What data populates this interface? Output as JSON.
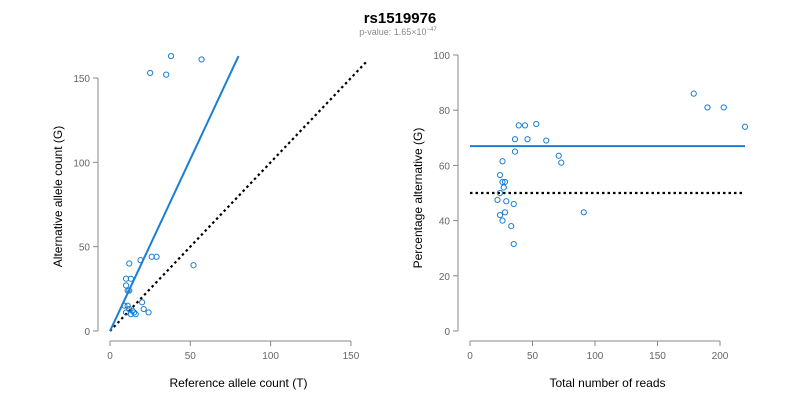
{
  "chart_data": {
    "title": "rs1519976",
    "subtitle": {
      "prefix": "p-value: 1.65×10",
      "exponent": "−47"
    },
    "colors": {
      "point": "#1a7fd4",
      "fit_line": "#1a7fd4",
      "reference_line": "#000000",
      "axis": "#888888",
      "tick_text": "#666666"
    },
    "panels": [
      {
        "type": "scatter",
        "xlabel": "Reference allele count (T)",
        "ylabel": "Alternative allele count (G)",
        "xlim": [
          0,
          160
        ],
        "ylim": [
          0,
          160
        ],
        "xticks": [
          0,
          50,
          100,
          150
        ],
        "yticks": [
          0,
          50,
          100,
          150
        ],
        "grid": false,
        "points": [
          {
            "x": 25,
            "y": 153
          },
          {
            "x": 35,
            "y": 152
          },
          {
            "x": 38,
            "y": 163
          },
          {
            "x": 57,
            "y": 161
          },
          {
            "x": 12,
            "y": 40
          },
          {
            "x": 19,
            "y": 42
          },
          {
            "x": 26,
            "y": 44
          },
          {
            "x": 29,
            "y": 44
          },
          {
            "x": 52,
            "y": 39
          },
          {
            "x": 10,
            "y": 31
          },
          {
            "x": 13,
            "y": 31
          },
          {
            "x": 10,
            "y": 27
          },
          {
            "x": 11,
            "y": 24
          },
          {
            "x": 12,
            "y": 24
          },
          {
            "x": 9,
            "y": 15
          },
          {
            "x": 11,
            "y": 15
          },
          {
            "x": 12,
            "y": 13
          },
          {
            "x": 10,
            "y": 11
          },
          {
            "x": 13,
            "y": 10
          },
          {
            "x": 14,
            "y": 12
          },
          {
            "x": 15,
            "y": 11
          },
          {
            "x": 16,
            "y": 10
          },
          {
            "x": 20,
            "y": 17
          },
          {
            "x": 21,
            "y": 13
          },
          {
            "x": 24,
            "y": 11
          }
        ],
        "fit_line": {
          "x": [
            0,
            80
          ],
          "y": [
            0,
            163
          ]
        },
        "reference_line": {
          "x": [
            0,
            160
          ],
          "y": [
            0,
            160
          ],
          "style": "dotted"
        }
      },
      {
        "type": "scatter",
        "xlabel": "Total number of reads",
        "ylabel": "Percentage alternative (G)",
        "xlim": [
          0,
          220
        ],
        "ylim": [
          0,
          100
        ],
        "xticks": [
          0,
          50,
          100,
          150,
          200
        ],
        "yticks": [
          0,
          20,
          40,
          60,
          80,
          100
        ],
        "grid": false,
        "points": [
          {
            "x": 179,
            "y": 86
          },
          {
            "x": 190,
            "y": 81
          },
          {
            "x": 203,
            "y": 81
          },
          {
            "x": 220,
            "y": 74
          },
          {
            "x": 39,
            "y": 74.5
          },
          {
            "x": 44,
            "y": 74.5
          },
          {
            "x": 53,
            "y": 75
          },
          {
            "x": 36,
            "y": 69.5
          },
          {
            "x": 46,
            "y": 69.5
          },
          {
            "x": 61,
            "y": 69
          },
          {
            "x": 36,
            "y": 65
          },
          {
            "x": 71,
            "y": 63.5
          },
          {
            "x": 73,
            "y": 61
          },
          {
            "x": 26,
            "y": 61.5
          },
          {
            "x": 24,
            "y": 56.5
          },
          {
            "x": 26,
            "y": 54
          },
          {
            "x": 28,
            "y": 54
          },
          {
            "x": 27,
            "y": 52
          },
          {
            "x": 24,
            "y": 50
          },
          {
            "x": 22,
            "y": 47.5
          },
          {
            "x": 29,
            "y": 47
          },
          {
            "x": 35,
            "y": 46
          },
          {
            "x": 28,
            "y": 43
          },
          {
            "x": 91,
            "y": 43
          },
          {
            "x": 24,
            "y": 42
          },
          {
            "x": 26,
            "y": 40
          },
          {
            "x": 33,
            "y": 38
          },
          {
            "x": 35,
            "y": 31.5
          }
        ],
        "fit_line": {
          "x": [
            0,
            220
          ],
          "y": [
            67,
            67
          ]
        },
        "reference_line": {
          "x": [
            0,
            220
          ],
          "y": [
            50,
            50
          ],
          "style": "dotted"
        }
      }
    ]
  }
}
